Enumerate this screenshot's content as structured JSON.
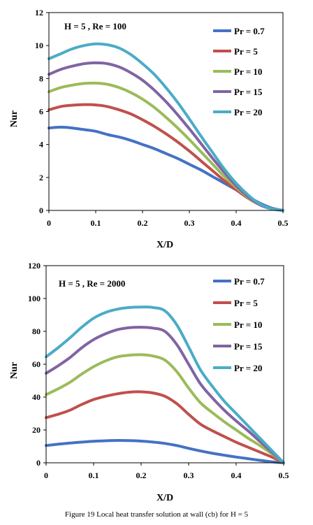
{
  "caption": "Figure 19 Local heat transfer solution at wall (cb) for H = 5",
  "chart_data": [
    {
      "type": "line",
      "annotation": "H = 5 , Re = 100",
      "xlabel": "X/D",
      "ylabel": "Nur",
      "xlim": [
        0,
        0.5
      ],
      "ylim": [
        0,
        12
      ],
      "xticks": [
        "0",
        "0.1",
        "0.2",
        "0.3",
        "0.4",
        "0.5"
      ],
      "yticks": [
        "0",
        "2",
        "4",
        "6",
        "8",
        "10",
        "12"
      ],
      "legend_position": "top-right",
      "grid": false,
      "x": [
        0,
        0.025,
        0.05,
        0.075,
        0.1,
        0.125,
        0.15,
        0.175,
        0.2,
        0.225,
        0.25,
        0.275,
        0.3,
        0.325,
        0.35,
        0.375,
        0.4,
        0.425,
        0.45,
        0.475,
        0.5
      ],
      "series": [
        {
          "name": "Pr = 0.7",
          "color": "#4472C4",
          "values": [
            5.0,
            5.05,
            5.0,
            4.9,
            4.8,
            4.6,
            4.45,
            4.25,
            4.0,
            3.75,
            3.45,
            3.15,
            2.8,
            2.45,
            2.05,
            1.65,
            1.25,
            0.85,
            0.45,
            0.15,
            0.0
          ]
        },
        {
          "name": "Pr = 5",
          "color": "#C0504D",
          "values": [
            6.1,
            6.3,
            6.38,
            6.42,
            6.4,
            6.3,
            6.1,
            5.85,
            5.5,
            5.1,
            4.65,
            4.15,
            3.6,
            3.0,
            2.4,
            1.8,
            1.25,
            0.75,
            0.35,
            0.1,
            0.0
          ]
        },
        {
          "name": "Pr = 10",
          "color": "#9BBB59",
          "values": [
            7.2,
            7.45,
            7.6,
            7.7,
            7.72,
            7.65,
            7.45,
            7.15,
            6.75,
            6.25,
            5.65,
            5.0,
            4.3,
            3.55,
            2.8,
            2.05,
            1.4,
            0.8,
            0.35,
            0.1,
            0.0
          ]
        },
        {
          "name": "Pr = 15",
          "color": "#8064A2",
          "values": [
            8.25,
            8.55,
            8.75,
            8.9,
            8.95,
            8.9,
            8.7,
            8.35,
            7.9,
            7.3,
            6.6,
            5.8,
            4.95,
            4.05,
            3.15,
            2.3,
            1.5,
            0.85,
            0.35,
            0.1,
            0.0
          ]
        },
        {
          "name": "Pr = 20",
          "color": "#4BACC6",
          "values": [
            9.2,
            9.5,
            9.8,
            10.0,
            10.1,
            10.05,
            9.85,
            9.45,
            8.9,
            8.25,
            7.45,
            6.55,
            5.55,
            4.5,
            3.5,
            2.5,
            1.65,
            0.95,
            0.4,
            0.1,
            0.0
          ]
        }
      ]
    },
    {
      "type": "line",
      "annotation": "H = 5 , Re = 2000",
      "xlabel": "X/D",
      "ylabel": "Nur",
      "xlim": [
        0,
        0.5
      ],
      "ylim": [
        0,
        120
      ],
      "xticks": [
        "0",
        "0.1",
        "0.2",
        "0.3",
        "0.4",
        "0.5"
      ],
      "yticks": [
        "0",
        "20",
        "40",
        "60",
        "80",
        "100",
        "120"
      ],
      "legend_position": "top-right",
      "grid": false,
      "x": [
        0,
        0.025,
        0.05,
        0.075,
        0.1,
        0.125,
        0.15,
        0.175,
        0.2,
        0.225,
        0.25,
        0.275,
        0.3,
        0.325,
        0.35,
        0.375,
        0.4,
        0.425,
        0.45,
        0.475,
        0.5
      ],
      "series": [
        {
          "name": "Pr = 0.7",
          "color": "#4472C4",
          "values": [
            10.5,
            11.3,
            12.0,
            12.6,
            13.1,
            13.4,
            13.6,
            13.5,
            13.2,
            12.6,
            11.8,
            10.5,
            8.8,
            7.2,
            5.8,
            4.6,
            3.5,
            2.5,
            1.5,
            0.6,
            0.0
          ]
        },
        {
          "name": "Pr = 5",
          "color": "#C0504D",
          "values": [
            27.5,
            29.5,
            32.0,
            35.5,
            38.5,
            40.5,
            42.0,
            43.0,
            43.2,
            42.5,
            40.5,
            36.0,
            29.5,
            23.5,
            19.5,
            16.0,
            12.5,
            9.5,
            6.5,
            3.5,
            0.0
          ]
        },
        {
          "name": "Pr = 10",
          "color": "#9BBB59",
          "values": [
            41.5,
            45.0,
            49.0,
            54.0,
            58.5,
            62.0,
            64.5,
            65.5,
            65.8,
            65.0,
            62.5,
            55.5,
            45.5,
            36.5,
            30.5,
            25.0,
            20.0,
            15.0,
            10.5,
            5.5,
            0.0
          ]
        },
        {
          "name": "Pr = 15",
          "color": "#8064A2",
          "values": [
            54.5,
            59.0,
            64.0,
            70.0,
            75.0,
            78.5,
            81.0,
            82.2,
            82.5,
            82.0,
            80.0,
            72.0,
            60.0,
            48.0,
            39.5,
            32.0,
            25.5,
            19.5,
            13.0,
            6.5,
            0.0
          ]
        },
        {
          "name": "Pr = 20",
          "color": "#4BACC6",
          "values": [
            64.5,
            70.0,
            76.0,
            82.5,
            88.0,
            91.5,
            93.5,
            94.5,
            94.8,
            94.5,
            92.5,
            84.0,
            70.5,
            56.5,
            46.5,
            37.5,
            30.0,
            22.5,
            15.0,
            7.5,
            0.0
          ]
        }
      ]
    }
  ]
}
